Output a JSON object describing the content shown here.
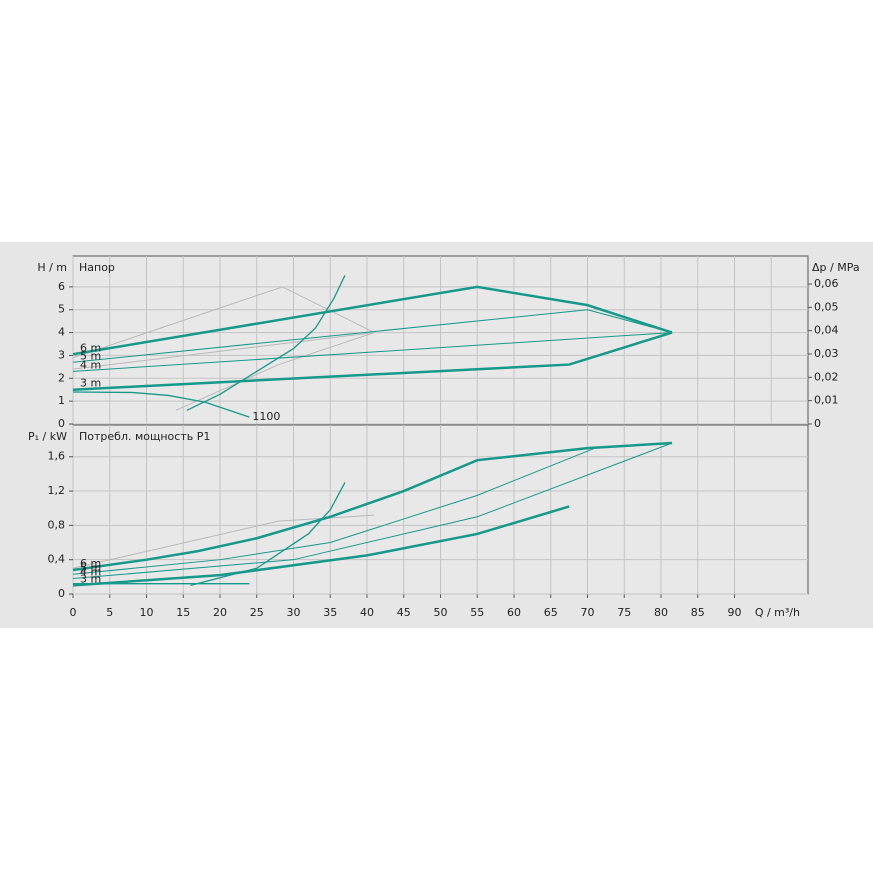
{
  "chart_data": [
    {
      "type": "line",
      "title": "Напор",
      "ylabel": "H / m",
      "y2label": "Δp / MPa",
      "xlim": [
        0,
        100
      ],
      "xticks": [
        0,
        5,
        10,
        15,
        20,
        25,
        30,
        35,
        40,
        45,
        50,
        55,
        60,
        65,
        70,
        75,
        80,
        85,
        90,
        95
      ],
      "show_xtick_labels": false,
      "ylim": [
        0,
        7.35
      ],
      "yticks": [
        0,
        1,
        2,
        3,
        4,
        5,
        6
      ],
      "y2lim": [
        0,
        0.072
      ],
      "y2ticks": [
        0,
        {
          "value": 0.01,
          "label": "0,01"
        },
        {
          "value": 0.02,
          "label": "0,02"
        },
        {
          "value": 0.03,
          "label": "0,03"
        },
        {
          "value": 0.04,
          "label": "0,04"
        },
        {
          "value": 0.05,
          "label": "0,05"
        },
        {
          "value": 0.06,
          "label": "0,06"
        }
      ],
      "grid": true,
      "series": [
        {
          "color": "#b8b8b8",
          "width": 1,
          "x": [
            0,
            28.5,
            41
          ],
          "values": [
            2.9,
            6.0,
            4.0
          ]
        },
        {
          "color": "#b8b8b8",
          "width": 1,
          "x": [
            0,
            41
          ],
          "values": [
            2.4,
            4.0
          ]
        },
        {
          "color": "#b8b8b8",
          "width": 1,
          "x": [
            14,
            28,
            41
          ],
          "values": [
            0.6,
            2.6,
            4.0
          ]
        },
        {
          "name": "6 m",
          "color": "#16998a",
          "width": 2.5,
          "x": [
            0,
            55,
            70,
            81.5
          ],
          "values": [
            3.05,
            6.0,
            5.2,
            4.0
          ]
        },
        {
          "name": "5 m",
          "color": "#16998a",
          "width": 1,
          "x": [
            0,
            70,
            81.5
          ],
          "values": [
            2.7,
            5.0,
            4.0
          ]
        },
        {
          "name": "4 m",
          "color": "#16998a",
          "width": 1,
          "x": [
            0,
            81.5
          ],
          "values": [
            2.3,
            4.0
          ]
        },
        {
          "name": "3 m",
          "color": "#16998a",
          "width": 2.5,
          "x": [
            0,
            67.5,
            81.5
          ],
          "values": [
            1.5,
            2.6,
            4.0
          ]
        },
        {
          "color": "#16998a",
          "width": 1.3,
          "x": [
            15.5,
            20,
            25,
            30,
            33,
            35.5,
            37
          ],
          "values": [
            0.6,
            1.3,
            2.3,
            3.3,
            4.2,
            5.5,
            6.5
          ]
        },
        {
          "name": "1100",
          "label_end": true,
          "color": "#16998a",
          "width": 1.3,
          "x": [
            0,
            8,
            13,
            18,
            24
          ],
          "values": [
            1.4,
            1.38,
            1.25,
            0.95,
            0.3
          ]
        }
      ]
    },
    {
      "type": "line",
      "title": "Потребл. мощность P1",
      "ylabel": "P₁ / kW",
      "xlabel": "Q / m³/h",
      "xlim": [
        0,
        100
      ],
      "xticks": [
        0,
        5,
        10,
        15,
        20,
        25,
        30,
        35,
        40,
        45,
        50,
        55,
        60,
        65,
        70,
        75,
        80,
        85,
        90
      ],
      "show_xtick_labels": true,
      "ylim": [
        0,
        1.97
      ],
      "yticks": [
        0,
        {
          "value": 0.4,
          "label": "0,4"
        },
        {
          "value": 0.8,
          "label": "0,8"
        },
        {
          "value": 1.2,
          "label": "1,2"
        },
        {
          "value": 1.6,
          "label": "1,6"
        }
      ],
      "grid": true,
      "series": [
        {
          "color": "#b8b8b8",
          "width": 1,
          "x": [
            0,
            28,
            41
          ],
          "values": [
            0.3,
            0.85,
            0.92
          ]
        },
        {
          "name": "6 m",
          "color": "#16998a",
          "width": 2.5,
          "x": [
            0,
            10,
            17,
            25,
            35,
            45,
            55,
            70,
            81.5
          ],
          "values": [
            0.28,
            0.4,
            0.5,
            0.65,
            0.9,
            1.2,
            1.56,
            1.7,
            1.76
          ]
        },
        {
          "name": "5 m",
          "color": "#16998a",
          "width": 1,
          "x": [
            0,
            20,
            35,
            55,
            71
          ],
          "values": [
            0.23,
            0.4,
            0.6,
            1.15,
            1.7
          ]
        },
        {
          "name": "4 m",
          "color": "#16998a",
          "width": 1,
          "x": [
            0,
            30,
            55,
            81.5
          ],
          "values": [
            0.18,
            0.4,
            0.9,
            1.76
          ]
        },
        {
          "name": "3 m",
          "color": "#16998a",
          "width": 2.5,
          "x": [
            0,
            20,
            40,
            55,
            67.5
          ],
          "values": [
            0.1,
            0.22,
            0.45,
            0.7,
            1.02
          ]
        },
        {
          "color": "#16998a",
          "width": 1.3,
          "x": [
            16,
            25,
            32,
            35,
            37
          ],
          "values": [
            0.1,
            0.3,
            0.7,
            0.98,
            1.3
          ]
        },
        {
          "color": "#16998a",
          "width": 1.3,
          "x": [
            0,
            24
          ],
          "values": [
            0.12,
            0.12
          ]
        }
      ]
    }
  ]
}
